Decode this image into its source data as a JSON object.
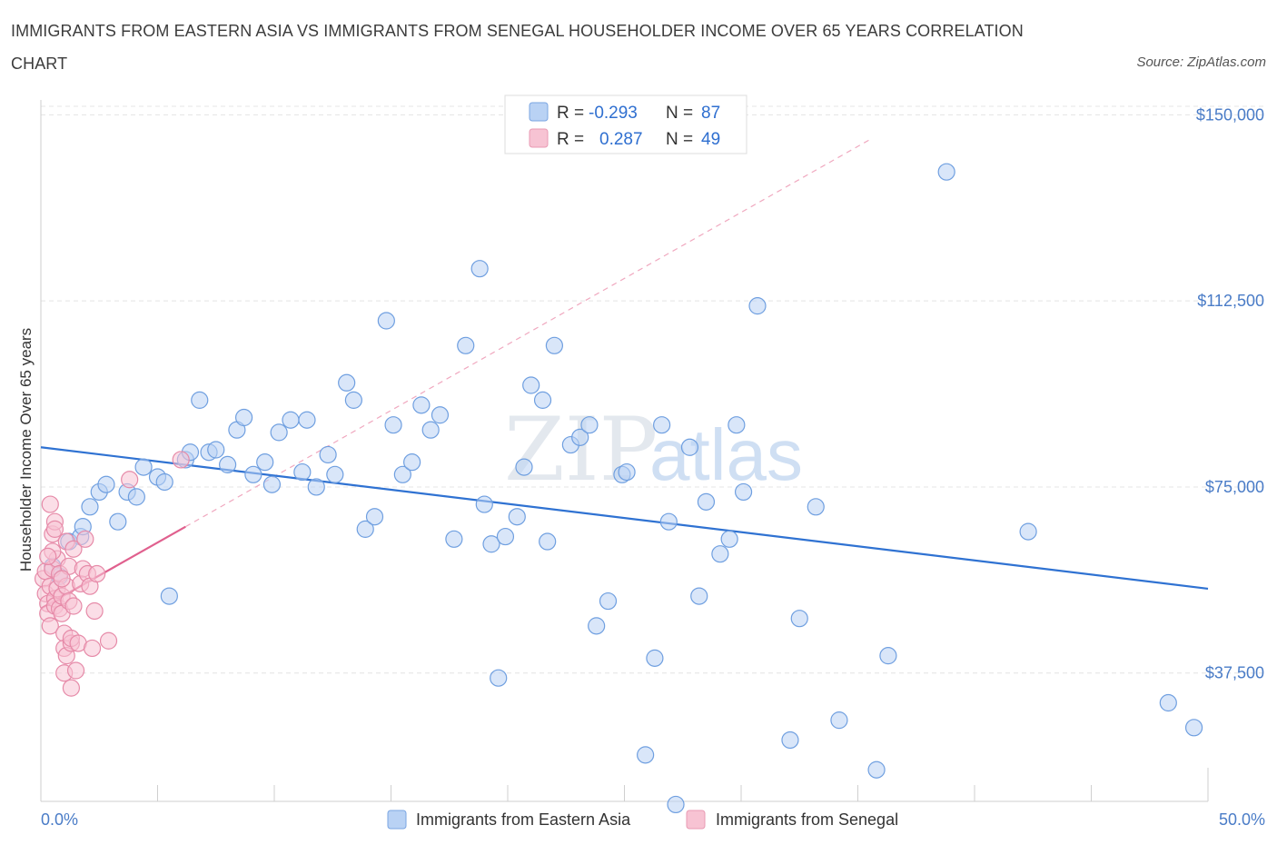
{
  "title": "IMMIGRANTS FROM EASTERN ASIA VS IMMIGRANTS FROM SENEGAL HOUSEHOLDER INCOME OVER 65 YEARS CORRELATION CHART",
  "source": "Source: ZipAtlas.com",
  "watermark": {
    "zip": "ZIP",
    "atlas": "atlas"
  },
  "legend": {
    "rows": [
      {
        "r_label": "R =",
        "r_value": "-0.293",
        "n_label": "N =",
        "n_value": "87",
        "color": "#a8c8f0"
      },
      {
        "r_label": "R =",
        "r_value": "0.287",
        "n_label": "N =",
        "n_value": "49",
        "color": "#f4b6c8"
      }
    ]
  },
  "bottom_legend": [
    "Immigrants from Eastern Asia",
    "Immigrants from Senegal"
  ],
  "chart_data": {
    "type": "scatter",
    "title": "IMMIGRANTS FROM EASTERN ASIA VS IMMIGRANTS FROM SENEGAL HOUSEHOLDER INCOME OVER 65 YEARS CORRELATION CHART",
    "xlabel": "",
    "ylabel": "Householder Income Over 65 years",
    "xlim": [
      0,
      50
    ],
    "ylim": [
      12000,
      153000
    ],
    "x_tick_labels": [
      "0.0%",
      "50.0%"
    ],
    "y_ticks": [
      {
        "value": 37500,
        "label": "$37,500"
      },
      {
        "value": 75000,
        "label": "$75,000"
      },
      {
        "value": 112500,
        "label": "$112,500"
      },
      {
        "value": 150000,
        "label": "$150,000"
      }
    ],
    "grid": true,
    "series": [
      {
        "name": "Immigrants from Eastern Asia",
        "color": "#6f9fe0",
        "fill": "#b9d2f4",
        "trend": {
          "x": [
            0,
            50
          ],
          "y": [
            83000,
            54500
          ],
          "color": "#2f72d2"
        },
        "points": [
          [
            0.8,
            57000
          ],
          [
            1.2,
            64000
          ],
          [
            1.7,
            65000
          ],
          [
            1.8,
            67000
          ],
          [
            2.1,
            71000
          ],
          [
            2.5,
            74000
          ],
          [
            2.8,
            75500
          ],
          [
            3.3,
            68000
          ],
          [
            3.7,
            74000
          ],
          [
            4.1,
            73000
          ],
          [
            4.4,
            79000
          ],
          [
            5.0,
            77000
          ],
          [
            5.3,
            76000
          ],
          [
            5.5,
            53000
          ],
          [
            6.2,
            80500
          ],
          [
            6.4,
            82000
          ],
          [
            6.8,
            92500
          ],
          [
            7.2,
            82000
          ],
          [
            7.5,
            82500
          ],
          [
            8.0,
            79500
          ],
          [
            8.4,
            86500
          ],
          [
            8.7,
            89000
          ],
          [
            9.1,
            77500
          ],
          [
            9.6,
            80000
          ],
          [
            9.9,
            75500
          ],
          [
            10.2,
            86000
          ],
          [
            10.7,
            88500
          ],
          [
            11.2,
            78000
          ],
          [
            11.4,
            88500
          ],
          [
            11.8,
            75000
          ],
          [
            12.3,
            81500
          ],
          [
            12.6,
            77500
          ],
          [
            13.1,
            96000
          ],
          [
            13.4,
            92500
          ],
          [
            13.9,
            66500
          ],
          [
            14.3,
            69000
          ],
          [
            14.8,
            108500
          ],
          [
            15.1,
            87500
          ],
          [
            15.5,
            77500
          ],
          [
            15.9,
            80000
          ],
          [
            16.3,
            91500
          ],
          [
            16.7,
            86500
          ],
          [
            17.1,
            89500
          ],
          [
            17.7,
            64500
          ],
          [
            18.2,
            103500
          ],
          [
            18.8,
            119000
          ],
          [
            19.0,
            71500
          ],
          [
            19.3,
            63500
          ],
          [
            19.6,
            36500
          ],
          [
            19.9,
            65000
          ],
          [
            20.4,
            69000
          ],
          [
            20.7,
            79000
          ],
          [
            21.0,
            95500
          ],
          [
            21.5,
            92500
          ],
          [
            21.7,
            64000
          ],
          [
            22.0,
            103500
          ],
          [
            22.7,
            83500
          ],
          [
            23.1,
            85000
          ],
          [
            23.5,
            87500
          ],
          [
            23.8,
            47000
          ],
          [
            24.3,
            52000
          ],
          [
            24.9,
            77500
          ],
          [
            25.1,
            78000
          ],
          [
            25.9,
            21000
          ],
          [
            26.3,
            40500
          ],
          [
            26.6,
            87500
          ],
          [
            26.9,
            68000
          ],
          [
            27.2,
            11000
          ],
          [
            27.8,
            83000
          ],
          [
            28.2,
            53000
          ],
          [
            28.5,
            72000
          ],
          [
            29.1,
            61500
          ],
          [
            29.5,
            64500
          ],
          [
            29.8,
            87500
          ],
          [
            30.1,
            74000
          ],
          [
            30.7,
            111500
          ],
          [
            32.1,
            24000
          ],
          [
            32.5,
            48500
          ],
          [
            33.2,
            71000
          ],
          [
            34.2,
            28000
          ],
          [
            35.8,
            18000
          ],
          [
            36.3,
            41000
          ],
          [
            38.8,
            138500
          ],
          [
            42.3,
            66000
          ],
          [
            48.3,
            31500
          ],
          [
            49.4,
            26500
          ],
          [
            0.5,
            59000
          ]
        ]
      },
      {
        "name": "Immigrants from Senegal",
        "color": "#e68aa8",
        "fill": "#f7c3d3",
        "trend": {
          "x": [
            0,
            6.2
          ],
          "y": [
            50500,
            67000
          ],
          "color": "#e0608e"
        },
        "points": [
          [
            0.1,
            56500
          ],
          [
            0.2,
            58000
          ],
          [
            0.2,
            53500
          ],
          [
            0.3,
            51500
          ],
          [
            0.3,
            49500
          ],
          [
            0.4,
            55000
          ],
          [
            0.4,
            47000
          ],
          [
            0.5,
            65500
          ],
          [
            0.5,
            58500
          ],
          [
            0.6,
            52500
          ],
          [
            0.6,
            51000
          ],
          [
            0.6,
            68000
          ],
          [
            0.7,
            60500
          ],
          [
            0.7,
            54500
          ],
          [
            0.8,
            57500
          ],
          [
            0.8,
            50500
          ],
          [
            0.9,
            53000
          ],
          [
            0.9,
            49500
          ],
          [
            1.0,
            45500
          ],
          [
            1.0,
            37500
          ],
          [
            1.0,
            42500
          ],
          [
            1.1,
            64000
          ],
          [
            1.1,
            55000
          ],
          [
            1.1,
            41000
          ],
          [
            1.2,
            59000
          ],
          [
            1.2,
            52000
          ],
          [
            1.3,
            43500
          ],
          [
            1.3,
            34500
          ],
          [
            1.3,
            44500
          ],
          [
            1.4,
            62500
          ],
          [
            1.4,
            51000
          ],
          [
            1.5,
            38000
          ],
          [
            1.6,
            43500
          ],
          [
            1.7,
            55500
          ],
          [
            1.8,
            58500
          ],
          [
            1.9,
            64500
          ],
          [
            2.0,
            57500
          ],
          [
            2.1,
            55000
          ],
          [
            2.2,
            42500
          ],
          [
            2.3,
            50000
          ],
          [
            2.4,
            57500
          ],
          [
            2.9,
            44000
          ],
          [
            0.4,
            71500
          ],
          [
            0.6,
            66500
          ],
          [
            0.5,
            62000
          ],
          [
            0.3,
            61000
          ],
          [
            0.9,
            56500
          ],
          [
            6.0,
            80500
          ],
          [
            3.8,
            76500
          ]
        ]
      }
    ]
  }
}
